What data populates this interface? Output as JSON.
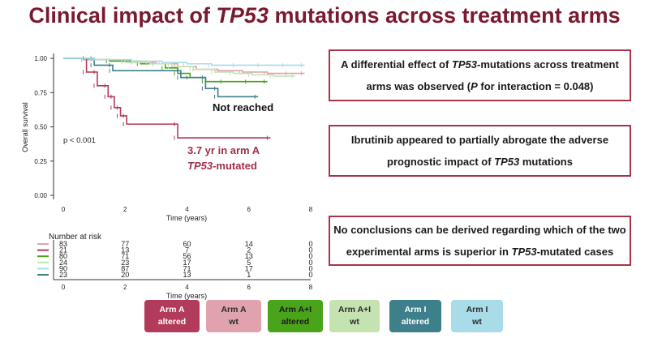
{
  "title": {
    "pre": "Clinical impact of ",
    "em": "TP53",
    "post": " mutations across treatment arms"
  },
  "notes": {
    "n1": {
      "a": "A differential effect of ",
      "em1": "TP53",
      "b": "-mutations across treatment",
      "c": "arms was observed (",
      "em2": "P",
      "d": " for interaction = 0.048)"
    },
    "n2": {
      "a": "Ibrutinib appeared to partially abrogate the adverse",
      "b": "prognostic impact of ",
      "em": "TP53",
      "c": " mutations"
    },
    "n3": {
      "a": "No conclusions can be derived regarding which of the two",
      "b": "experimental arms is superior in ",
      "em": "TP53",
      "c": "-mutated cases"
    }
  },
  "annotations": {
    "not_reached": "Not reached",
    "median_line1": "3.7 yr in arm A",
    "median_em": "TP53",
    "median_post": "-mutated",
    "pvalue": "p < 0.001"
  },
  "risk_table_label": "Number at risk",
  "legend": [
    {
      "line1": "Arm A",
      "line2": "altered",
      "bg": "#b33b5a",
      "fg": "#ffffff"
    },
    {
      "line1": "Arm A",
      "line2": "wt",
      "bg": "#e0a3ae",
      "fg": "#2a2a2a"
    },
    {
      "line1": "Arm A+I",
      "line2": "altered",
      "bg": "#4aa41a",
      "fg": "#1a1a1a"
    },
    {
      "line1": "Arm A+I",
      "line2": "wt",
      "bg": "#c4e3b0",
      "fg": "#2a2a2a"
    },
    {
      "line1": "Arm I",
      "line2": "altered",
      "bg": "#3e7f8c",
      "fg": "#ffffff"
    },
    {
      "line1": "Arm I",
      "line2": "wt",
      "bg": "#a8dce8",
      "fg": "#2a2a2a"
    }
  ],
  "chart_data": {
    "type": "line",
    "xlabel": "Time (years)",
    "ylabel": "Overall survival",
    "xlim": [
      0,
      8
    ],
    "ylim": [
      0,
      1
    ],
    "xticks": [
      0,
      2,
      4,
      6,
      8
    ],
    "yticks": [
      "0.00",
      "0.25",
      "0.50",
      "0.75",
      "1.00"
    ],
    "series": [
      {
        "color": "#e0a3ae",
        "x": [
          0,
          0.7,
          1.5,
          2.3,
          3.0,
          3.7,
          4.3,
          5.0,
          5.8,
          6.6,
          7.3,
          7.8
        ],
        "y": [
          1.0,
          0.99,
          0.98,
          0.97,
          0.96,
          0.94,
          0.92,
          0.91,
          0.9,
          0.89,
          0.89,
          0.89
        ]
      },
      {
        "color": "#b33b5a",
        "x": [
          0,
          0.75,
          0.75,
          1.1,
          1.1,
          1.45,
          1.45,
          1.65,
          1.65,
          1.85,
          1.85,
          2.05,
          2.05,
          3.7,
          3.7,
          6.7
        ],
        "y": [
          1.0,
          1.0,
          0.9,
          0.9,
          0.8,
          0.8,
          0.72,
          0.72,
          0.64,
          0.64,
          0.58,
          0.58,
          0.52,
          0.52,
          0.42,
          0.42
        ]
      },
      {
        "color": "#4aa41a",
        "x": [
          0,
          1.0,
          1.5,
          2.5,
          3.3,
          3.7,
          4.1,
          4.6,
          5.2,
          6.0,
          6.6
        ],
        "y": [
          1.0,
          0.99,
          0.98,
          0.96,
          0.93,
          0.89,
          0.86,
          0.83,
          0.83,
          0.83,
          0.83
        ]
      },
      {
        "color": "#c4e3b0",
        "x": [
          0,
          1.0,
          2.0,
          2.8,
          3.5,
          4.2,
          4.9,
          5.5,
          6.1,
          6.8,
          7.5
        ],
        "y": [
          1.0,
          0.99,
          0.97,
          0.96,
          0.94,
          0.92,
          0.9,
          0.89,
          0.88,
          0.87,
          0.87
        ]
      },
      {
        "color": "#3e7f8c",
        "x": [
          0,
          1.0,
          1.0,
          1.6,
          1.6,
          3.8,
          3.8,
          4.6,
          4.6,
          5.0,
          5.0,
          6.3
        ],
        "y": [
          1.0,
          1.0,
          0.95,
          0.95,
          0.91,
          0.91,
          0.86,
          0.86,
          0.78,
          0.78,
          0.72,
          0.72
        ]
      },
      {
        "color": "#a8dce8",
        "x": [
          0,
          1.0,
          2.2,
          3.2,
          4.0,
          4.8,
          5.6,
          6.4,
          7.2,
          7.8
        ],
        "y": [
          1.0,
          0.99,
          0.98,
          0.97,
          0.96,
          0.95,
          0.95,
          0.95,
          0.95,
          0.95
        ]
      }
    ],
    "risk_table": {
      "times": [
        0,
        2,
        4,
        6,
        8
      ],
      "rows": [
        {
          "color": "#e0a3ae",
          "values": [
            "83",
            "77",
            "60",
            "14",
            "0"
          ]
        },
        {
          "color": "#b33b5a",
          "values": [
            "21",
            "13",
            "7",
            "2",
            "0"
          ]
        },
        {
          "color": "#4aa41a",
          "values": [
            "80",
            "71",
            "56",
            "13",
            "0"
          ]
        },
        {
          "color": "#c4e3b0",
          "values": [
            "24",
            "23",
            "17",
            "5",
            "0"
          ]
        },
        {
          "color": "#a8dce8",
          "values": [
            "90",
            "87",
            "71",
            "17",
            "0"
          ]
        },
        {
          "color": "#3e7f8c",
          "values": [
            "23",
            "20",
            "13",
            "1",
            "0"
          ]
        }
      ]
    }
  }
}
